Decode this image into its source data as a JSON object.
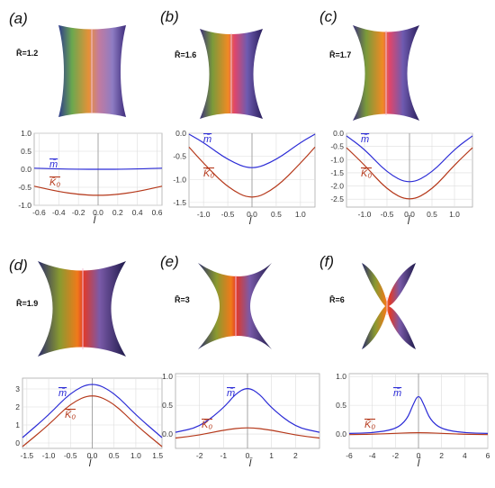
{
  "figure": {
    "panels": [
      {
        "letter": "(a)",
        "r_label": "R̄=1.2"
      },
      {
        "letter": "(b)",
        "r_label": "R̄=1.6"
      },
      {
        "letter": "(c)",
        "r_label": "R̄=1.7"
      },
      {
        "letter": "(d)",
        "r_label": "R̄=1.9"
      },
      {
        "letter": "(e)",
        "r_label": "R̄=3"
      },
      {
        "letter": "(f)",
        "r_label": "R̄=6"
      }
    ],
    "colors": {
      "m": "#2b2bd6",
      "k0": "#b5381a",
      "grid": "#dddddd",
      "axis": "#888888"
    }
  },
  "chart_data": [
    {
      "type": "line",
      "panel": "(a)",
      "xlabel": "l̄",
      "xlim": [
        -0.65,
        0.65
      ],
      "ylim": [
        -1.0,
        1.0
      ],
      "xticks": [
        -0.6,
        -0.4,
        -0.2,
        0.0,
        0.2,
        0.4,
        0.6
      ],
      "yticks": [
        -1.0,
        -0.5,
        0.0,
        0.5,
        1.0
      ],
      "series": [
        {
          "name": "m̄",
          "x": [
            -0.65,
            -0.4,
            -0.2,
            0.0,
            0.2,
            0.4,
            0.65
          ],
          "y": [
            0.03,
            0.01,
            0.0,
            0.0,
            0.0,
            0.01,
            0.03
          ]
        },
        {
          "name": "K̄₀",
          "x": [
            -0.65,
            -0.4,
            -0.2,
            0.0,
            0.2,
            0.4,
            0.65
          ],
          "y": [
            -0.47,
            -0.62,
            -0.7,
            -0.73,
            -0.7,
            -0.62,
            -0.47
          ]
        }
      ]
    },
    {
      "type": "line",
      "panel": "(b)",
      "xlabel": "l̄",
      "xlim": [
        -1.3,
        1.3
      ],
      "ylim": [
        -1.6,
        0.0
      ],
      "xticks": [
        -1.0,
        -0.5,
        0.0,
        0.5,
        1.0
      ],
      "yticks": [
        -1.5,
        -1.0,
        -0.5,
        0.0
      ],
      "series": [
        {
          "name": "m̄",
          "x": [
            -1.3,
            -1.0,
            -0.5,
            0.0,
            0.5,
            1.0,
            1.3
          ],
          "y": [
            -0.02,
            -0.2,
            -0.58,
            -0.8,
            -0.58,
            -0.2,
            -0.02
          ]
        },
        {
          "name": "K̄₀",
          "x": [
            -1.3,
            -1.0,
            -0.5,
            0.0,
            0.5,
            1.0,
            1.3
          ],
          "y": [
            -0.3,
            -0.65,
            -1.18,
            -1.45,
            -1.18,
            -0.65,
            -0.3
          ]
        }
      ]
    },
    {
      "type": "line",
      "panel": "(c)",
      "xlabel": "l̄",
      "xlim": [
        -1.4,
        1.4
      ],
      "ylim": [
        -2.8,
        0.0
      ],
      "xticks": [
        -1.0,
        -0.5,
        0.0,
        0.5,
        1.0
      ],
      "yticks": [
        -2.5,
        -2.0,
        -1.5,
        -1.0,
        -0.5,
        0.0
      ],
      "series": [
        {
          "name": "m̄",
          "x": [
            -1.4,
            -1.0,
            -0.5,
            0.0,
            0.5,
            1.0,
            1.4
          ],
          "y": [
            -0.1,
            -0.6,
            -1.5,
            -1.95,
            -1.5,
            -0.6,
            -0.1
          ]
        },
        {
          "name": "K̄₀",
          "x": [
            -1.4,
            -1.0,
            -0.5,
            0.0,
            0.5,
            1.0,
            1.4
          ],
          "y": [
            -0.55,
            -1.2,
            -2.15,
            -2.6,
            -2.15,
            -1.2,
            -0.55
          ]
        }
      ]
    },
    {
      "type": "line",
      "panel": "(d)",
      "xlabel": "l̄",
      "xlim": [
        -1.6,
        1.6
      ],
      "ylim": [
        -0.3,
        3.6
      ],
      "xticks": [
        -1.5,
        -1.0,
        -0.5,
        0.0,
        0.5,
        1.0,
        1.5
      ],
      "yticks": [
        0,
        1,
        2,
        3
      ],
      "series": [
        {
          "name": "m̄",
          "x": [
            -1.6,
            -1.0,
            -0.5,
            0.0,
            0.5,
            1.0,
            1.6
          ],
          "y": [
            0.3,
            1.55,
            2.8,
            3.4,
            2.8,
            1.55,
            0.3
          ]
        },
        {
          "name": "K̄₀",
          "x": [
            -1.6,
            -1.0,
            -0.5,
            0.0,
            0.5,
            1.0,
            1.6
          ],
          "y": [
            -0.2,
            1.0,
            2.2,
            2.75,
            2.2,
            1.0,
            -0.2
          ]
        }
      ]
    },
    {
      "type": "line",
      "panel": "(e)",
      "xlabel": "l̄",
      "xlim": [
        -3,
        3
      ],
      "ylim": [
        -0.25,
        1.05
      ],
      "xticks": [
        -2,
        -1,
        0,
        1,
        2
      ],
      "yticks": [
        0.0,
        0.5,
        1.0
      ],
      "series": [
        {
          "name": "m̄",
          "x": [
            -3,
            -2,
            -1,
            -0.5,
            0,
            0.5,
            1,
            2,
            3
          ],
          "y": [
            0.03,
            0.12,
            0.45,
            0.7,
            0.82,
            0.7,
            0.45,
            0.12,
            0.03
          ]
        },
        {
          "name": "K̄₀",
          "x": [
            -3,
            -2,
            -1,
            0,
            1,
            2,
            3
          ],
          "y": [
            -0.07,
            -0.02,
            0.07,
            0.12,
            0.07,
            -0.02,
            -0.07
          ]
        }
      ]
    },
    {
      "type": "line",
      "panel": "(f)",
      "xlabel": "l̄",
      "xlim": [
        -6,
        6
      ],
      "ylim": [
        -0.25,
        1.05
      ],
      "xticks": [
        -6,
        -4,
        -2,
        0,
        2,
        4,
        6
      ],
      "yticks": [
        0.0,
        0.5,
        1.0
      ],
      "series": [
        {
          "name": "m̄",
          "x": [
            -6,
            -4,
            -2,
            -1,
            -0.5,
            0,
            0.5,
            1,
            2,
            4,
            6
          ],
          "y": [
            0.01,
            0.02,
            0.08,
            0.25,
            0.5,
            0.7,
            0.5,
            0.25,
            0.08,
            0.02,
            0.01
          ]
        },
        {
          "name": "K̄₀",
          "x": [
            -6,
            -3,
            0,
            3,
            6
          ],
          "y": [
            -0.01,
            0.0,
            0.03,
            0.0,
            -0.01
          ]
        }
      ]
    }
  ]
}
